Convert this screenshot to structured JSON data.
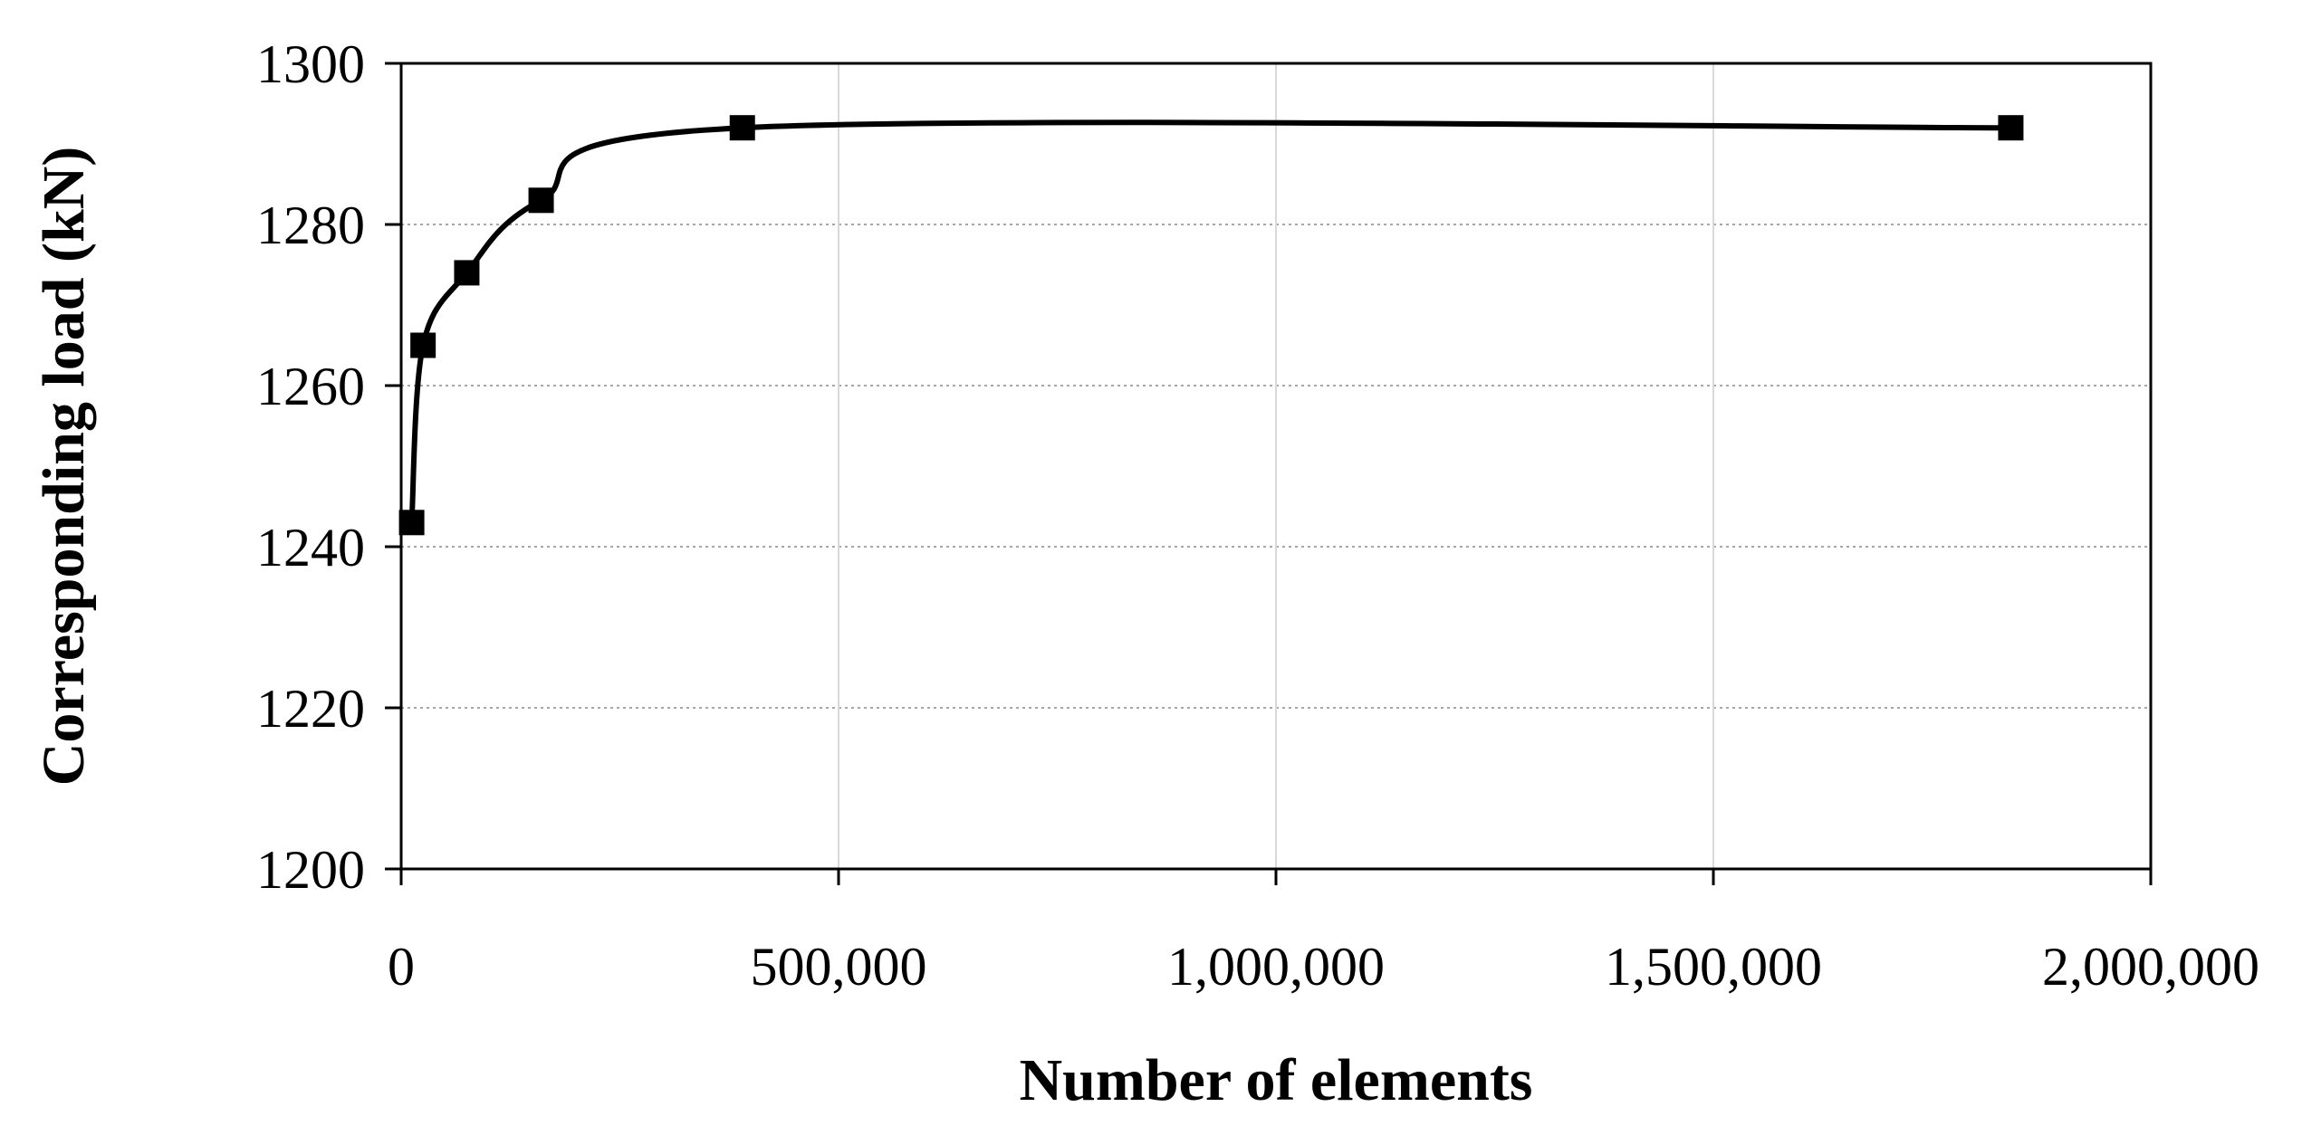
{
  "chart_data": {
    "type": "line",
    "title": "",
    "xlabel": "Number of elements",
    "ylabel": "Corresponding load (kN)",
    "xlim": [
      0,
      2000000
    ],
    "ylim": [
      1200,
      1300
    ],
    "x_ticks": [
      0,
      500000,
      1000000,
      1500000,
      2000000
    ],
    "x_tick_labels": [
      "0",
      "500,000",
      "1,000,000",
      "1,500,000",
      "2,000,000"
    ],
    "y_ticks": [
      1200,
      1220,
      1240,
      1260,
      1280,
      1300
    ],
    "y_tick_labels": [
      "1200",
      "1220",
      "1240",
      "1260",
      "1280",
      "1300"
    ],
    "grid": {
      "horizontal": true,
      "vertical": true
    },
    "legend": "none",
    "series": [
      {
        "marker": "square",
        "color": "#000000",
        "smooth": true,
        "x": [
          12000,
          25000,
          75000,
          160000,
          390000,
          1840000
        ],
        "y": [
          1243,
          1265,
          1274,
          1283,
          1292,
          1292
        ]
      }
    ]
  }
}
